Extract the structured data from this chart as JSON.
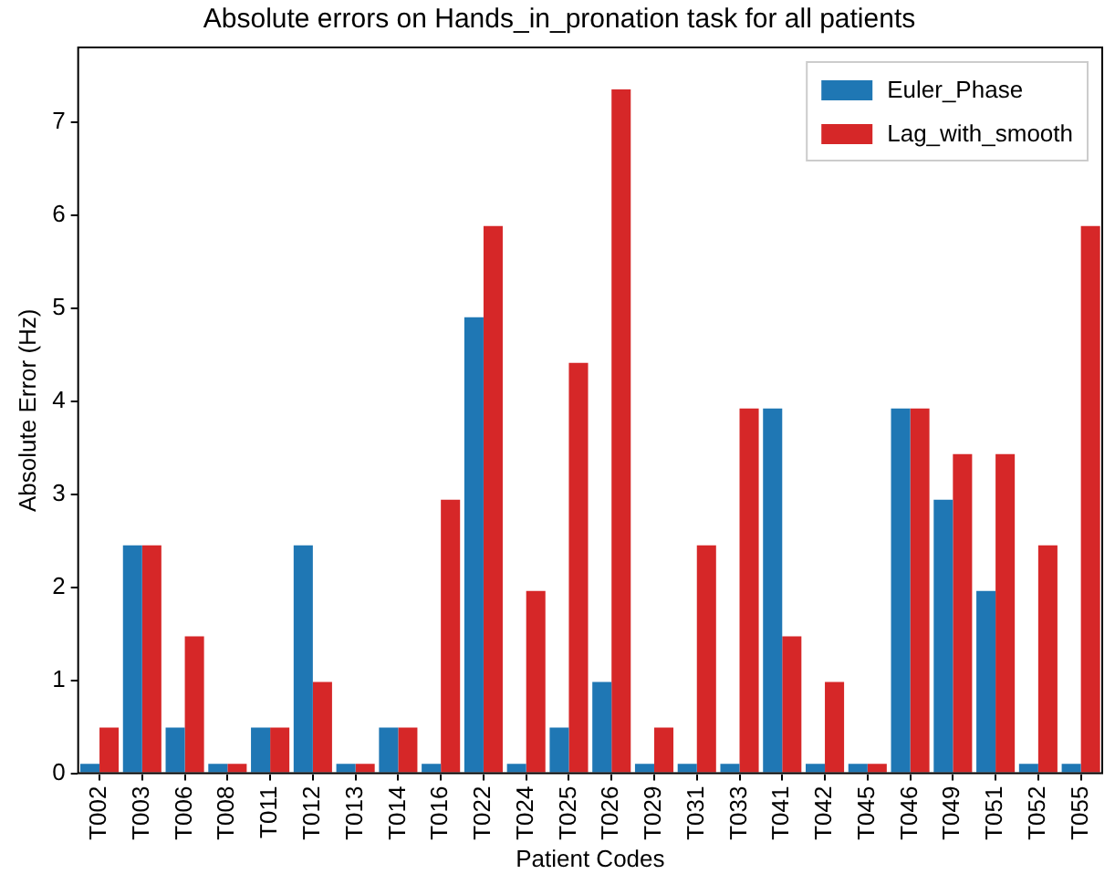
{
  "chart_data": {
    "type": "bar",
    "title": "Absolute errors on Hands_in_pronation task for all patients",
    "xlabel": "Patient Codes",
    "ylabel": "Absolute Error (Hz)",
    "categories": [
      "T002",
      "T003",
      "T006",
      "T008",
      "T011",
      "T012",
      "T013",
      "T014",
      "T016",
      "T022",
      "T024",
      "T025",
      "T026",
      "T029",
      "T031",
      "T033",
      "T041",
      "T042",
      "T045",
      "T046",
      "T049",
      "T051",
      "T052",
      "T055"
    ],
    "series": [
      {
        "name": "Euler_Phase",
        "color": "#1f77b4",
        "values": [
          0.1,
          2.45,
          0.49,
          0.1,
          0.49,
          2.45,
          0.1,
          0.49,
          0.1,
          4.9,
          0.1,
          0.49,
          0.98,
          0.1,
          0.1,
          0.1,
          3.92,
          0.1,
          0.1,
          3.92,
          2.94,
          1.96,
          0.1,
          0.1
        ]
      },
      {
        "name": "Lag_with_smooth",
        "color": "#d62728",
        "values": [
          0.49,
          2.45,
          1.47,
          0.1,
          0.49,
          0.98,
          0.1,
          0.49,
          2.94,
          5.88,
          1.96,
          4.41,
          7.35,
          0.49,
          2.45,
          3.92,
          1.47,
          0.98,
          0.1,
          3.92,
          3.43,
          3.43,
          2.45,
          5.88
        ]
      }
    ],
    "ylim": [
      0,
      7.8
    ],
    "yticks": [
      0,
      1,
      2,
      3,
      4,
      5,
      6,
      7
    ],
    "grid": false,
    "legend": "top right"
  }
}
